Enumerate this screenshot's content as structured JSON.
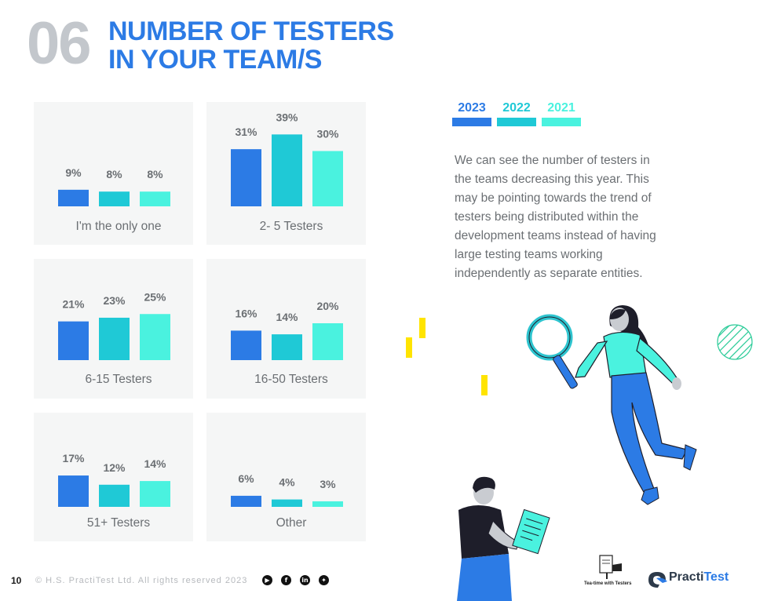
{
  "header": {
    "section_number": "06",
    "title_line1": "NUMBER OF TESTERS",
    "title_line2": "IN YOUR TEAM/S"
  },
  "legend": [
    {
      "year": "2023",
      "color": "#2c7be5"
    },
    {
      "year": "2022",
      "color": "#1fc9d6"
    },
    {
      "year": "2021",
      "color": "#4af2df"
    }
  ],
  "description": "We can see the number of testers in the teams decreasing this year. This may be pointing towards the trend of testers being distributed within the development teams instead of having large testing teams working independently as separate entities.",
  "chart_data": [
    {
      "type": "bar",
      "title": "I'm the only one",
      "categories": [
        "2023",
        "2022",
        "2021"
      ],
      "values": [
        9,
        8,
        8
      ],
      "labels": [
        "9%",
        "8%",
        "8%"
      ]
    },
    {
      "type": "bar",
      "title": "2- 5 Testers",
      "categories": [
        "2023",
        "2022",
        "2021"
      ],
      "values": [
        31,
        39,
        30
      ],
      "labels": [
        "31%",
        "39%",
        "30%"
      ]
    },
    {
      "type": "bar",
      "title": "6-15 Testers",
      "categories": [
        "2023",
        "2022",
        "2021"
      ],
      "values": [
        21,
        23,
        25
      ],
      "labels": [
        "21%",
        "23%",
        "25%"
      ]
    },
    {
      "type": "bar",
      "title": "16-50 Testers",
      "categories": [
        "2023",
        "2022",
        "2021"
      ],
      "values": [
        16,
        14,
        20
      ],
      "labels": [
        "16%",
        "14%",
        "20%"
      ]
    },
    {
      "type": "bar",
      "title": "51+ Testers",
      "categories": [
        "2023",
        "2022",
        "2021"
      ],
      "values": [
        17,
        12,
        14
      ],
      "labels": [
        "17%",
        "12%",
        "14%"
      ]
    },
    {
      "type": "bar",
      "title": "Other",
      "categories": [
        "2023",
        "2022",
        "2021"
      ],
      "values": [
        6,
        4,
        3
      ],
      "labels": [
        "6%",
        "4%",
        "3%"
      ]
    }
  ],
  "footer": {
    "page_number": "10",
    "copyright": "© H.S. PractiTest Ltd. All rights reserved 2023",
    "social_icons": [
      "youtube-icon",
      "facebook-icon",
      "linkedin-icon",
      "twitter-icon"
    ],
    "logo_teatime_caption": "Tea-time with Testers",
    "logo_practitest_a": "Practi",
    "logo_practitest_b": "Test"
  },
  "colors": {
    "accent": "#2c7be5",
    "panel_bg": "#f5f6f6",
    "text_gray": "#6b6f73"
  }
}
